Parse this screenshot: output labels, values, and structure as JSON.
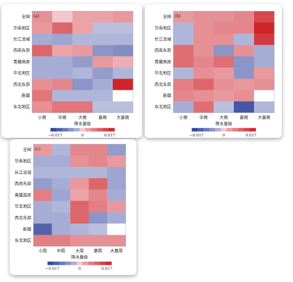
{
  "chart_data": [
    {
      "type": "heatmap",
      "panel_label": "(a)",
      "rows": [
        "全国",
        "华南地区",
        "长江流域",
        "西南东部",
        "青藏高原",
        "华北地区",
        "西北东部",
        "新疆",
        "东北地区"
      ],
      "columns": [
        "小雨",
        "中雨",
        "大雨",
        "暴雨",
        "大暴雨"
      ],
      "values": [
        [
          0.005,
          0.0,
          0.003,
          0.003,
          0.004
        ],
        [
          0.004,
          0.01,
          0.003,
          -0.002,
          -0.002
        ],
        [
          -0.004,
          -0.005,
          -0.003,
          -0.003,
          -0.003
        ],
        [
          0.01,
          0.003,
          0.004,
          -0.007,
          -0.008
        ],
        [
          -0.004,
          -0.004,
          -0.006,
          0.004,
          0.002
        ],
        [
          -0.004,
          -0.004,
          -0.003,
          -0.006,
          -0.003
        ],
        [
          0.005,
          0.006,
          -0.007,
          -0.004,
          0.019
        ],
        [
          0.008,
          -0.003,
          -0.003,
          -0.003,
          null
        ],
        [
          0.005,
          0.008,
          0.008,
          -0.002,
          -0.002
        ]
      ],
      "xlabel": "降水量级",
      "colorbar": {
        "ticks": [
          "-0.017",
          "0",
          "0.017"
        ],
        "range": [
          -0.02,
          0.02
        ]
      }
    },
    {
      "type": "heatmap",
      "panel_label": "(b)",
      "rows": [
        "全国",
        "华南地区",
        "长江流域",
        "西南东部",
        "青藏高原",
        "华北地区",
        "西北东部",
        "新疆",
        "东北地区"
      ],
      "columns": [
        "小雨",
        "中雨",
        "大雨",
        "暴雨",
        "大暴雨"
      ],
      "values": [
        [
          0.004,
          0.005,
          0.005,
          0.006,
          0.014
        ],
        [
          -0.003,
          0.005,
          0.006,
          0.006,
          0.019
        ],
        [
          -0.003,
          0.005,
          0.005,
          -0.003,
          0.016
        ],
        [
          0.009,
          0.005,
          -0.007,
          0.005,
          -0.004
        ],
        [
          0.009,
          0.006,
          0.009,
          -0.007,
          -0.004
        ],
        [
          -0.003,
          0.005,
          0.004,
          -0.007,
          0.004
        ],
        [
          0.007,
          0.01,
          0.005,
          0.004,
          0.005
        ],
        [
          0.006,
          0.005,
          0.004,
          0.005,
          null
        ],
        [
          -0.004,
          0.009,
          -0.002,
          -0.016,
          -0.003
        ]
      ],
      "xlabel": "降水量级",
      "colorbar": {
        "ticks": [
          "-0.017",
          "0",
          "0.017"
        ],
        "range": [
          -0.02,
          0.02
        ]
      }
    },
    {
      "type": "heatmap",
      "panel_label": "(c)",
      "rows": [
        "全国",
        "华南地区",
        "长江流域",
        "西南东部",
        "青藏高原",
        "华北地区",
        "西北东部",
        "新疆",
        "东北地区"
      ],
      "columns": [
        "小雨",
        "中雨",
        "大雨",
        "暴雨",
        "大暴雨"
      ],
      "values": [
        [
          0.004,
          -0.003,
          0.006,
          0.006,
          -0.006
        ],
        [
          -0.004,
          -0.004,
          0.005,
          0.006,
          0.004
        ],
        [
          -0.003,
          -0.003,
          -0.003,
          -0.003,
          -0.005
        ],
        [
          -0.006,
          -0.004,
          0.004,
          0.01,
          -0.005
        ],
        [
          0.007,
          -0.005,
          0.003,
          0.006,
          -0.004
        ],
        [
          -0.004,
          -0.003,
          0.01,
          0.007,
          0.004
        ],
        [
          -0.004,
          -0.004,
          0.01,
          -0.007,
          -0.004
        ],
        [
          -0.014,
          -0.004,
          -0.003,
          -0.002,
          null
        ],
        [
          0.007,
          0.007,
          0.005,
          0.005,
          0.005
        ]
      ],
      "xlabel": "降水量级",
      "colorbar": {
        "ticks": [
          "-0.017",
          "0",
          "0.017"
        ],
        "range": [
          -0.02,
          0.02
        ]
      }
    }
  ]
}
